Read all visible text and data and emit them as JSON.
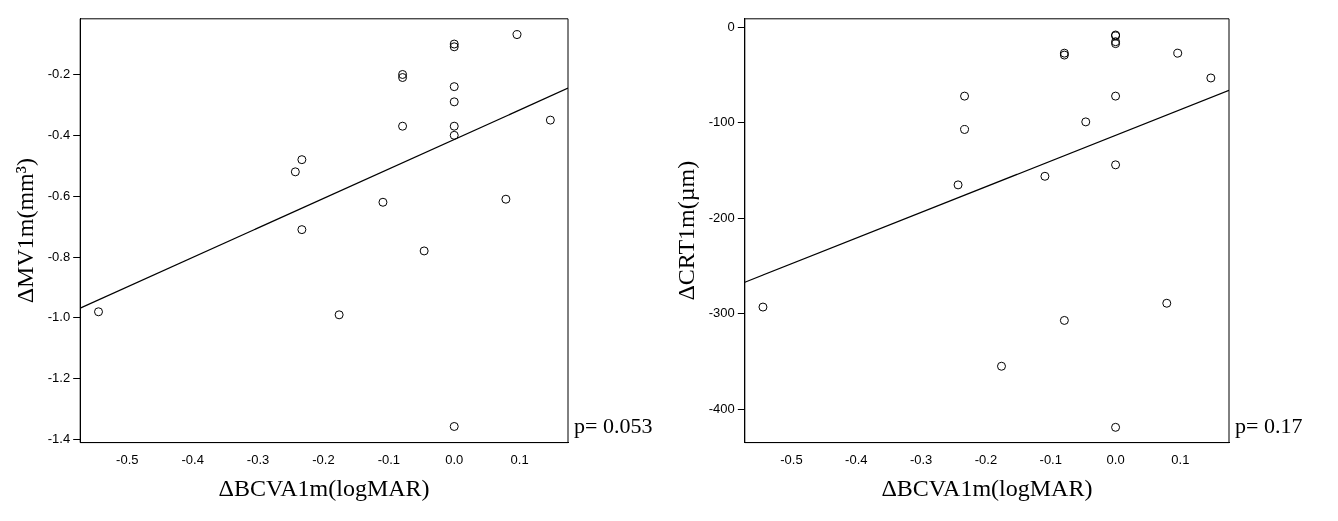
{
  "chart_data": [
    {
      "type": "scatter",
      "xlabel": "ΔBCVA1m(logMAR)",
      "ylabel": "ΔMV1m(mm³)",
      "annotations": [
        "p= 0.053"
      ],
      "grid": false,
      "legend": false,
      "marker": "circle",
      "xlim": [
        -0.572,
        0.174
      ],
      "xticks": [
        -0.5,
        -0.4,
        -0.3,
        -0.2,
        -0.1,
        {
          "value": 0,
          "label": "0.0"
        },
        0.1
      ],
      "ylim": [
        -1.41,
        -0.017
      ],
      "yticks": [
        -1.4,
        -1.2,
        {
          "value": -1,
          "label": "-1.0"
        },
        -0.8,
        -0.6,
        -0.4,
        -0.2
      ],
      "series": [
        {
          "color": "#000000",
          "x": [
            0.096,
            0,
            0,
            -0.079,
            -0.079,
            0,
            0,
            -0.079,
            0,
            0,
            0.147,
            -0.233,
            -0.243,
            -0.109,
            0.079,
            -0.233,
            -0.046,
            -0.544,
            -0.176,
            0
          ],
          "values": [
            -0.069,
            -0.1,
            -0.109,
            -0.2,
            -0.21,
            -0.24,
            -0.29,
            -0.37,
            -0.37,
            -0.4,
            -0.35,
            -0.48,
            -0.52,
            -0.62,
            -0.61,
            -0.71,
            -0.78,
            -0.98,
            -0.99,
            -1.357
          ]
        },
        {
          "type": "line",
          "color": "#000000",
          "marker": "none",
          "x": [
            -0.572,
            0.174
          ],
          "values": [
            -0.968,
            -0.245
          ]
        }
      ]
    },
    {
      "type": "scatter",
      "xlabel": "ΔBCVA1m(logMAR)",
      "ylabel": "ΔCRT1m(µm)",
      "annotations": [
        "p= 0.17"
      ],
      "grid": false,
      "legend": false,
      "marker": "circle",
      "xlim": [
        -0.572,
        0.175
      ],
      "xticks": [
        -0.5,
        -0.4,
        -0.3,
        -0.2,
        -0.1,
        {
          "value": 0,
          "label": "0.0"
        },
        0.1
      ],
      "ylim": [
        -435,
        9
      ],
      "yticks": [
        -400,
        -300,
        -200,
        -100,
        0
      ],
      "series": [
        {
          "color": "#000000",
          "x": [
            0,
            0,
            0,
            0,
            -0.079,
            -0.079,
            0.096,
            0.147,
            0,
            -0.233,
            -0.046,
            -0.233,
            0,
            -0.109,
            -0.243,
            -0.544,
            0.079,
            -0.079,
            -0.176,
            0
          ],
          "values": [
            -8,
            -9,
            -15,
            -17,
            -27,
            -29,
            -27,
            -53,
            -72,
            -72,
            -99,
            -107,
            -144,
            -156,
            -165,
            -293,
            -289,
            -307,
            -355,
            -419
          ]
        },
        {
          "type": "line",
          "color": "#000000",
          "marker": "none",
          "x": [
            -0.572,
            0.175
          ],
          "values": [
            -267,
            -66
          ]
        }
      ]
    }
  ]
}
